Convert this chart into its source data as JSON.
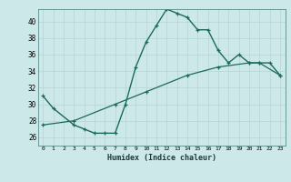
{
  "xlabel": "Humidex (Indice chaleur)",
  "bg_color": "#cde8e8",
  "grid_color": "#b8d8d5",
  "line_color": "#1a6b5a",
  "xlim": [
    -0.5,
    23.5
  ],
  "ylim": [
    25.0,
    41.5
  ],
  "yticks": [
    26,
    28,
    30,
    32,
    34,
    36,
    38,
    40
  ],
  "xticks": [
    0,
    1,
    2,
    3,
    4,
    5,
    6,
    7,
    8,
    9,
    10,
    11,
    12,
    13,
    14,
    15,
    16,
    17,
    18,
    19,
    20,
    21,
    22,
    23
  ],
  "line1_x": [
    0,
    1,
    3,
    4,
    5,
    6,
    7,
    8,
    9,
    10,
    11,
    12,
    13,
    14,
    15,
    16,
    17,
    18,
    19,
    20,
    21,
    22,
    23
  ],
  "line1_y": [
    31,
    29.5,
    27.5,
    27,
    26.5,
    26.5,
    26.5,
    30,
    34.5,
    37.5,
    39.5,
    41.5,
    41,
    40.5,
    39,
    39,
    36.5,
    35,
    36,
    35,
    35,
    35,
    33.5
  ],
  "line2_x": [
    0,
    3,
    7,
    10,
    14,
    17,
    20,
    21,
    23
  ],
  "line2_y": [
    27.5,
    28,
    30,
    31.5,
    33.5,
    34.5,
    35,
    35,
    33.5
  ]
}
